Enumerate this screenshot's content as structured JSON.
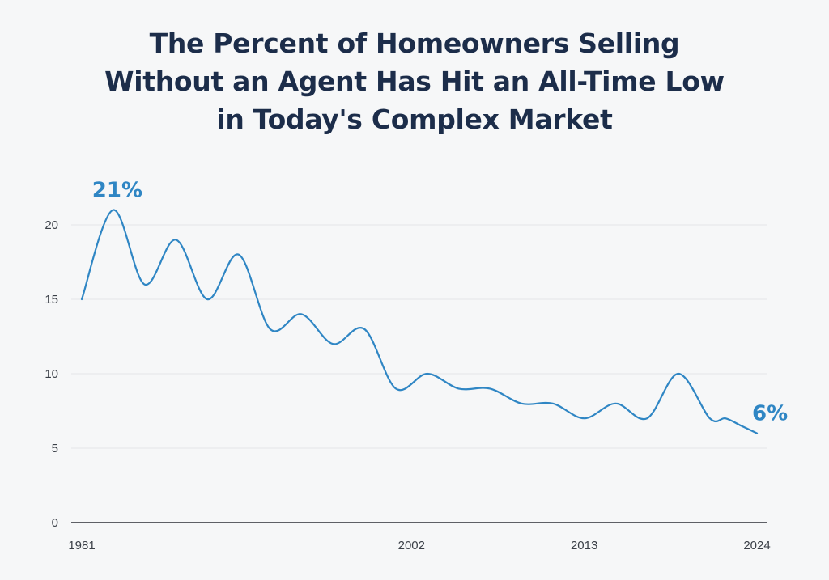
{
  "chart_data": {
    "type": "line",
    "title": "The Percent of Homeowners Selling Without an Agent Has Hit an All-Time Low in Today's Complex Market",
    "title_lines": [
      "The Percent of Homeowners Selling",
      "Without an Agent Has Hit an All-Time Low",
      "in Today's Complex Market"
    ],
    "xlabel": "",
    "ylabel": "",
    "x": [
      1981,
      1983,
      1985,
      1987,
      1989,
      1991,
      1993,
      1995,
      1997,
      1999,
      2001,
      2003,
      2005,
      2007,
      2009,
      2011,
      2013,
      2015,
      2017,
      2019,
      2021,
      2022,
      2023,
      2024
    ],
    "series": [
      {
        "values": [
          15,
          21,
          16,
          19,
          15,
          18,
          13,
          14,
          12,
          13,
          9,
          10,
          9,
          9,
          8,
          8,
          7,
          8,
          7,
          10,
          7,
          7,
          6.5,
          6
        ]
      }
    ],
    "xlim": [
      1981,
      2024
    ],
    "ylim": [
      0,
      22
    ],
    "x_ticks": [
      "1981",
      "2002",
      "2013",
      "2024"
    ],
    "x_tick_values": [
      1981,
      2002,
      2013,
      2024
    ],
    "y_ticks": [
      "0",
      "5",
      "10",
      "15",
      "20"
    ],
    "y_tick_values": [
      0,
      5,
      10,
      15,
      20
    ],
    "grid": true,
    "annotations": [
      {
        "text": "21%",
        "x": 1983,
        "y": 21
      },
      {
        "text": "6%",
        "x": 2024,
        "y": 6
      }
    ],
    "colors": {
      "line": "#2f86c4",
      "annotation": "#2f86c4",
      "title": "#1c2d4a",
      "grid": "#e4e6e9",
      "axis": "#2b2f36"
    }
  }
}
